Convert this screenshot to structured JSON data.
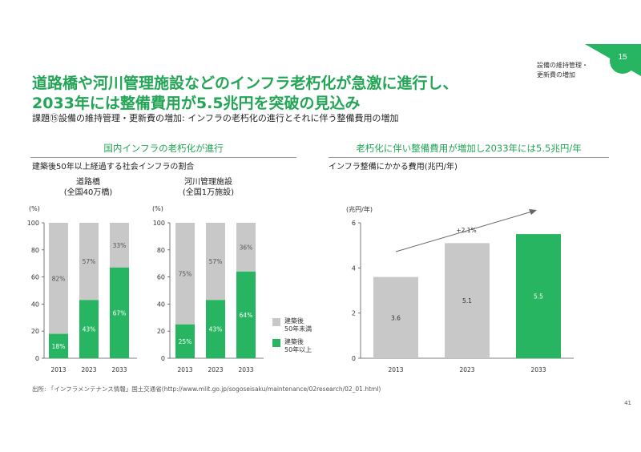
{
  "header": {
    "page_number": "15",
    "section_label_line1": "設備の維持管理・",
    "section_label_line2": "更新費の増加",
    "title_line1": "道路橋や河川管理施設などのインフラ老朽化が急激に進行し、",
    "title_line2": "2033年には整備費用が5.5兆円を突破の見込み",
    "subtitle": "課題⑮設備の維持管理・更新費の増加: インフラの老朽化の進行とそれに伴う整備費用の増加"
  },
  "colors": {
    "green": "#27b561",
    "gray": "#c8c8c8",
    "accent_green": "#22a555",
    "arrow_gray": "#666666"
  },
  "left_panel": {
    "heading": "国内インフラの老朽化が進行",
    "caption": "建築後50年以上経過する社会インフラの割合"
  },
  "right_panel": {
    "heading": "老朽化に伴い整備費用が増加し2033年には5.5兆円/年",
    "caption": "インフラ整備にかかる費用(兆円/年)"
  },
  "legend": {
    "under50": "建築後\n50年未満",
    "over50": "建築後\n50年以上"
  },
  "source": "出所: 「インフラメンテナンス情報」国土交通省(http://www.mlit.go.jp/sogoseisaku/maintenance/02research/02_01.html)",
  "footer_page": "41",
  "chart_data": [
    {
      "type": "bar",
      "stacked": true,
      "title_line1": "道路橋",
      "title_line2": "(全国40万橋)",
      "ylabel": "(%)",
      "ylim": [
        0,
        100
      ],
      "yticks": [
        "0",
        "20",
        "40",
        "60",
        "80",
        "100"
      ],
      "categories": [
        "2013",
        "2023",
        "2033"
      ],
      "series": [
        {
          "name": "建築後50年以上",
          "values": [
            18,
            43,
            67
          ],
          "labels": [
            "18%",
            "43%",
            "67%"
          ]
        },
        {
          "name": "建築後50年未満",
          "values": [
            82,
            57,
            33
          ],
          "labels": [
            "82%",
            "57%",
            "33%"
          ]
        }
      ]
    },
    {
      "type": "bar",
      "stacked": true,
      "title_line1": "河川管理施設",
      "title_line2": "(全国1万施設)",
      "ylabel": "(%)",
      "ylim": [
        0,
        100
      ],
      "yticks": [
        "0",
        "20",
        "40",
        "60",
        "80",
        "100"
      ],
      "categories": [
        "2013",
        "2023",
        "2033"
      ],
      "series": [
        {
          "name": "建築後50年以上",
          "values": [
            25,
            43,
            64
          ],
          "labels": [
            "25%",
            "43%",
            "64%"
          ]
        },
        {
          "name": "建築後50年未満",
          "values": [
            75,
            57,
            36
          ],
          "labels": [
            "75%",
            "57%",
            "36%"
          ]
        }
      ]
    },
    {
      "type": "bar",
      "ylabel": "(兆円/年)",
      "ylim": [
        0,
        6
      ],
      "yticks": [
        "0",
        "2",
        "4",
        "6"
      ],
      "categories": [
        "2013",
        "2023",
        "2033"
      ],
      "values": [
        3.6,
        5.1,
        5.5
      ],
      "labels": [
        "3.6",
        "5.1",
        "5.5"
      ],
      "annotation": "+2.1%"
    }
  ]
}
